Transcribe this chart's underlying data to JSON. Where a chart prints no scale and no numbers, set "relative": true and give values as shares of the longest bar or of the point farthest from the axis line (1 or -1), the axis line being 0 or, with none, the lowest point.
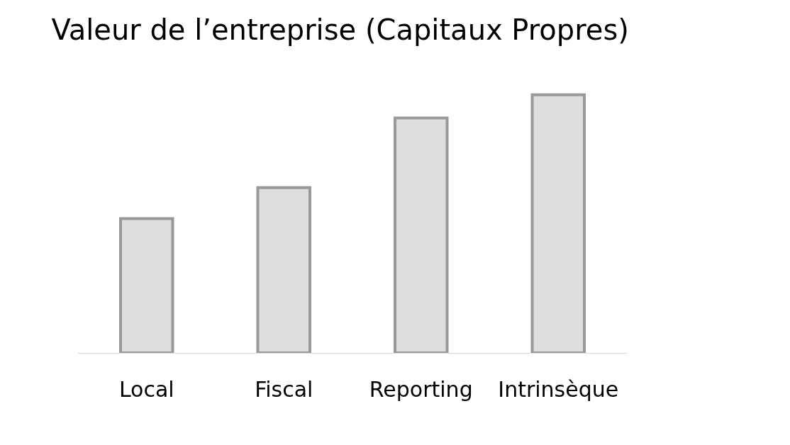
{
  "chart_data": {
    "type": "bar",
    "title": "Valeur de l’entreprise (Capitaux Propres)",
    "categories": [
      "Local",
      "Fiscal",
      "Reporting",
      "Intrinsèque"
    ],
    "values": [
      0.52,
      0.64,
      0.91,
      1
    ],
    "color": "#dedede",
    "relative": true
  }
}
